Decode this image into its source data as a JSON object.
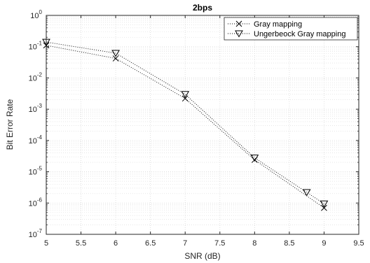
{
  "chart_data": {
    "type": "line",
    "title": "2bps",
    "xlabel": "SNR (dB)",
    "ylabel": "Bit Error Rate",
    "xlim": [
      5,
      9.5
    ],
    "ylim": [
      1e-07,
      1
    ],
    "yscale": "log",
    "x_tick_labels": [
      "5",
      "5.5",
      "6",
      "6.5",
      "7",
      "7.5",
      "8",
      "8.5",
      "9",
      "9.5"
    ],
    "y_tick_labels": [
      {
        "base": "10",
        "exp": "-7"
      },
      {
        "base": "10",
        "exp": "-6"
      },
      {
        "base": "10",
        "exp": "-5"
      },
      {
        "base": "10",
        "exp": "-4"
      },
      {
        "base": "10",
        "exp": "-3"
      },
      {
        "base": "10",
        "exp": "-2"
      },
      {
        "base": "10",
        "exp": "-1"
      },
      {
        "base": "10",
        "exp": "0"
      }
    ],
    "grid": true,
    "legend_position": "top-right",
    "series": [
      {
        "name": "Gray mapping",
        "marker": "x",
        "line_style": "dotted",
        "x": [
          5,
          6,
          7,
          8,
          9
        ],
        "y": [
          0.11,
          0.042,
          0.0022,
          2.4e-05,
          7e-07
        ]
      },
      {
        "name": "Ungerbeock Gray mapping",
        "marker": "triangle-down",
        "line_style": "dotted",
        "x": [
          5,
          6,
          7,
          8,
          8.75,
          9
        ],
        "y": [
          0.14,
          0.062,
          0.003,
          2.8e-05,
          2.2e-06,
          9.5e-07
        ]
      }
    ],
    "colors": {
      "line": "#000000",
      "grid": "#d8d8d8",
      "axis": "#262626"
    }
  }
}
